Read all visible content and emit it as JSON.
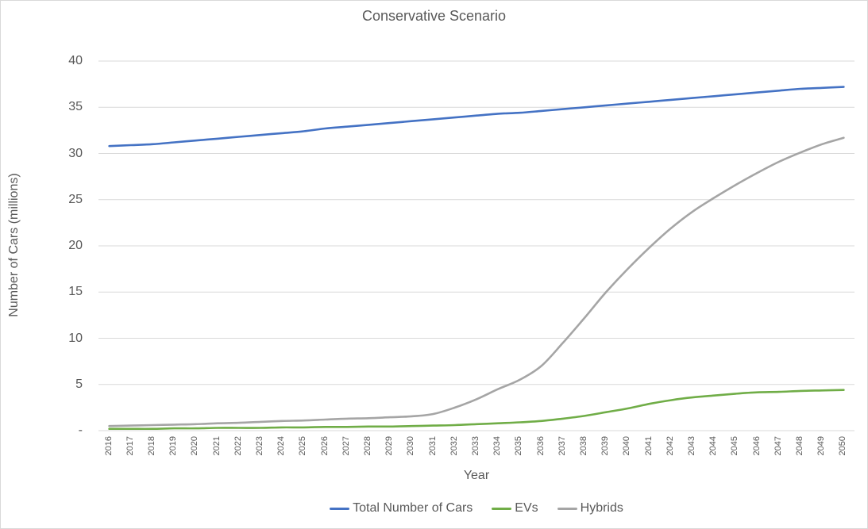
{
  "chart_data": {
    "type": "line",
    "title": "Conservative Scenario",
    "xlabel": "Year",
    "ylabel": "Number of Cars (millions)",
    "categories": [
      "2016",
      "2017",
      "2018",
      "2019",
      "2020",
      "2021",
      "2022",
      "2023",
      "2024",
      "2025",
      "2026",
      "2027",
      "2028",
      "2029",
      "2030",
      "2031",
      "2032",
      "2033",
      "2034",
      "2035",
      "2036",
      "2037",
      "2038",
      "2039",
      "2040",
      "2041",
      "2042",
      "2043",
      "2044",
      "2045",
      "2046",
      "2047",
      "2048",
      "2049",
      "2050"
    ],
    "ylim": [
      0,
      40
    ],
    "ytick_step": 5,
    "ytick_labels": [
      "-",
      "5",
      "10",
      "15",
      "20",
      "25",
      "30",
      "35",
      "40"
    ],
    "grid": true,
    "legend_position": "bottom",
    "series": [
      {
        "name": "Total Number of Cars",
        "color": "#4472C4",
        "values": [
          30.8,
          30.9,
          31.0,
          31.2,
          31.4,
          31.6,
          31.8,
          32.0,
          32.2,
          32.4,
          32.7,
          32.9,
          33.1,
          33.3,
          33.5,
          33.7,
          33.9,
          34.1,
          34.3,
          34.4,
          34.6,
          34.8,
          35.0,
          35.2,
          35.4,
          35.6,
          35.8,
          36.0,
          36.2,
          36.4,
          36.6,
          36.8,
          37.0,
          37.1,
          37.2
        ]
      },
      {
        "name": "EVs",
        "color": "#70AD47",
        "values": [
          0.2,
          0.2,
          0.2,
          0.25,
          0.25,
          0.3,
          0.3,
          0.3,
          0.35,
          0.35,
          0.4,
          0.4,
          0.45,
          0.45,
          0.5,
          0.55,
          0.6,
          0.7,
          0.8,
          0.9,
          1.05,
          1.3,
          1.6,
          2.0,
          2.4,
          2.9,
          3.3,
          3.6,
          3.8,
          4.0,
          4.15,
          4.2,
          4.3,
          4.35,
          4.4
        ]
      },
      {
        "name": "Hybrids",
        "color": "#A5A5A5",
        "values": [
          0.5,
          0.55,
          0.6,
          0.65,
          0.7,
          0.8,
          0.85,
          0.95,
          1.05,
          1.1,
          1.2,
          1.3,
          1.35,
          1.45,
          1.55,
          1.8,
          2.5,
          3.4,
          4.5,
          5.5,
          7.0,
          9.5,
          12.2,
          15.0,
          17.5,
          19.8,
          21.9,
          23.7,
          25.2,
          26.6,
          27.9,
          29.1,
          30.1,
          31.0,
          31.7
        ]
      }
    ],
    "colors": {
      "axis_text": "#595959",
      "title_text": "#595959",
      "gridline": "#D9D9D9",
      "chart_border": "#D9D9D9",
      "background": "#FFFFFF"
    }
  }
}
